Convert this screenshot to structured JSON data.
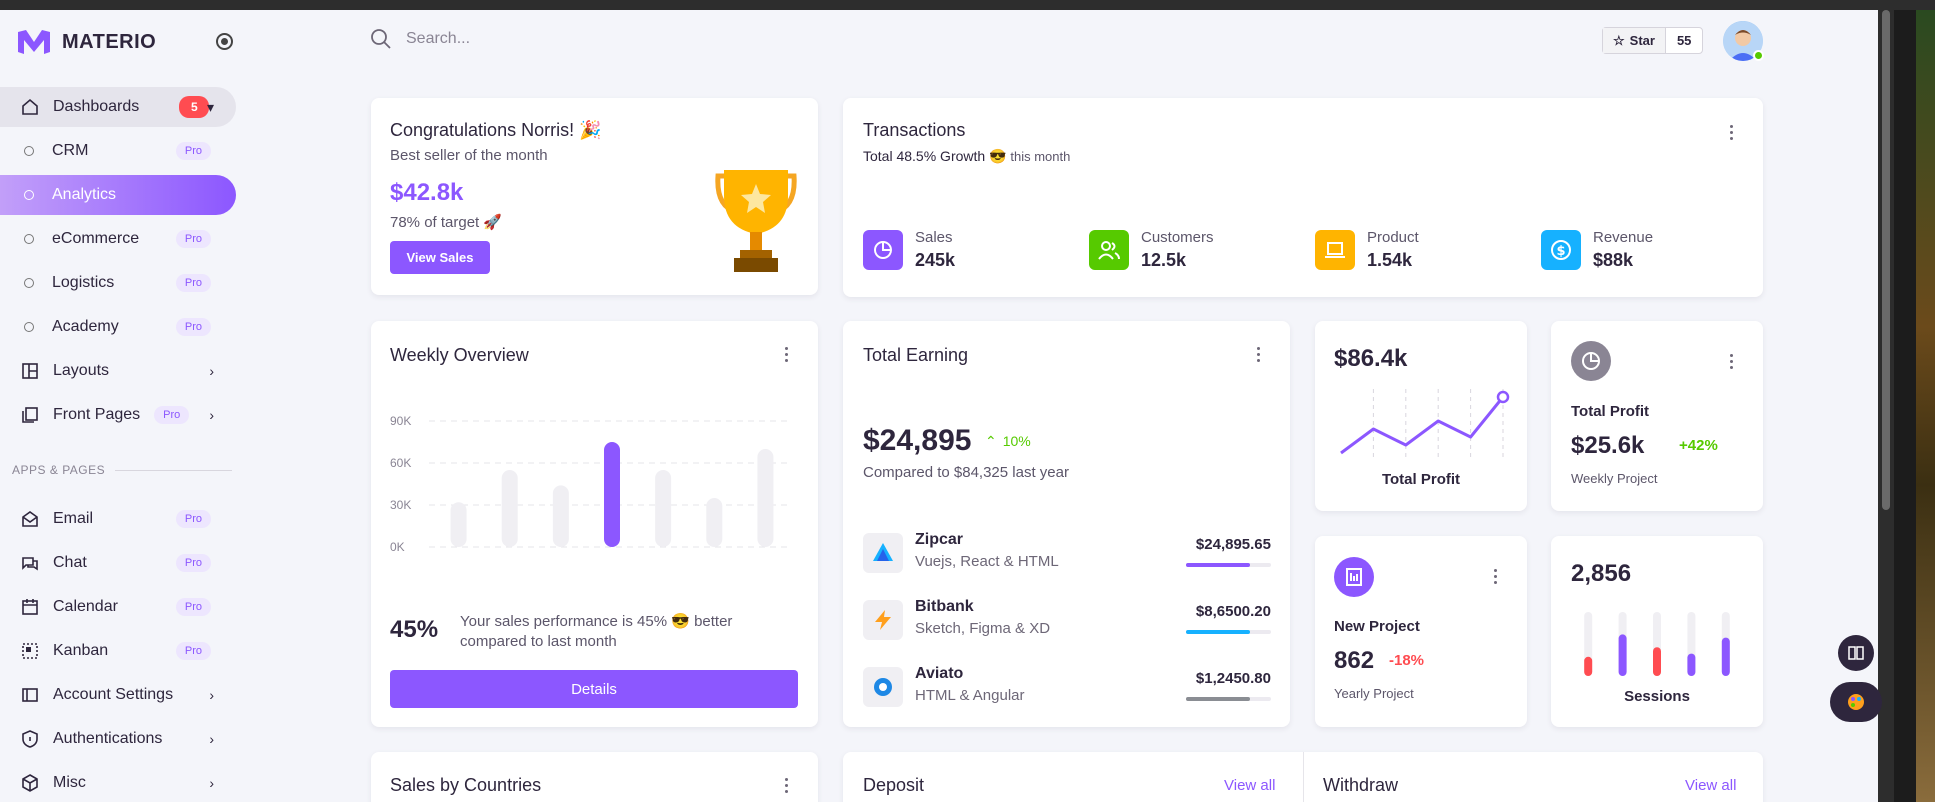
{
  "brand": {
    "name": "MATERIO"
  },
  "sidebar": {
    "items": [
      {
        "label": "Dashboards",
        "badge": "5"
      },
      {
        "label": "CRM",
        "pro": "Pro"
      },
      {
        "label": "Analytics"
      },
      {
        "label": "eCommerce",
        "pro": "Pro"
      },
      {
        "label": "Logistics",
        "pro": "Pro"
      },
      {
        "label": "Academy",
        "pro": "Pro"
      },
      {
        "label": "Layouts"
      },
      {
        "label": "Front Pages",
        "pro": "Pro"
      }
    ],
    "section": "APPS & PAGES",
    "apps": [
      {
        "label": "Email",
        "pro": "Pro"
      },
      {
        "label": "Chat",
        "pro": "Pro"
      },
      {
        "label": "Calendar",
        "pro": "Pro"
      },
      {
        "label": "Kanban",
        "pro": "Pro"
      },
      {
        "label": "Account Settings"
      },
      {
        "label": "Authentications"
      },
      {
        "label": "Misc"
      }
    ]
  },
  "search": {
    "placeholder": "Search..."
  },
  "github": {
    "star_label": "Star",
    "count": "55"
  },
  "congrats": {
    "title": "Congratulations Norris! 🎉",
    "subtitle": "Best seller of the month",
    "amount": "$42.8k",
    "target": "78% of target 🚀",
    "button": "View Sales"
  },
  "transactions": {
    "title": "Transactions",
    "growth": "Total 48.5% Growth 😎",
    "period": "this month",
    "stats": [
      {
        "label": "Sales",
        "value": "245k",
        "color": "#8c57ff"
      },
      {
        "label": "Customers",
        "value": "12.5k",
        "color": "#56ca00"
      },
      {
        "label": "Product",
        "value": "1.54k",
        "color": "#ffb400"
      },
      {
        "label": "Revenue",
        "value": "$88k",
        "color": "#16b1ff"
      }
    ]
  },
  "weekly": {
    "title": "Weekly Overview",
    "percent": "45%",
    "desc": "Your sales performance is 45% 😎 better compared to last month",
    "button": "Details"
  },
  "chart_data": {
    "type": "bar",
    "categories": [
      "",
      "",
      "",
      "",
      "",
      "",
      "",
      ""
    ],
    "values": [
      32,
      55,
      44,
      75,
      55,
      35,
      70,
      0
    ],
    "ylim": [
      0,
      90
    ],
    "yticks": [
      "90K",
      "60K",
      "30K",
      "0K"
    ],
    "highlight_index": 3,
    "colors": {
      "normal": "#f0eff3",
      "highlight": "#8c57ff"
    }
  },
  "earning": {
    "title": "Total Earning",
    "amount": "$24,895",
    "change": "10%",
    "compare": "Compared to $84,325 last year",
    "rows": [
      {
        "name": "Zipcar",
        "sub": "Vuejs, React & HTML",
        "amount": "$24,895.65",
        "progress": 0.75,
        "color": "#8c57ff"
      },
      {
        "name": "Bitbank",
        "sub": "Sketch, Figma & XD",
        "amount": "$8,6500.20",
        "progress": 0.75,
        "color": "#16b1ff"
      },
      {
        "name": "Aviato",
        "sub": "HTML & Angular",
        "amount": "$1,2450.80",
        "progress": 0.75,
        "color": "#8a8d93"
      }
    ]
  },
  "profit_line": {
    "amount": "$86.4k",
    "label": "Total Profit",
    "values": [
      2,
      5,
      3,
      6,
      4,
      9
    ]
  },
  "profit_card": {
    "title": "Total Profit",
    "amount": "$25.6k",
    "change": "+42%",
    "sub": "Weekly Project"
  },
  "project": {
    "title": "New Project",
    "amount": "862",
    "change": "-18%",
    "sub": "Yearly Project"
  },
  "sessions": {
    "amount": "2,856",
    "label": "Sessions",
    "levels": [
      0.3,
      0.65,
      0.45,
      0.35,
      0.6
    ],
    "colors": [
      "#ff4c51",
      "#8c57ff",
      "#ff4c51",
      "#8c57ff",
      "#8c57ff"
    ]
  },
  "bottom": {
    "countries": "Sales by Countries",
    "deposit": "Deposit",
    "withdraw": "Withdraw",
    "view_all": "View all"
  }
}
